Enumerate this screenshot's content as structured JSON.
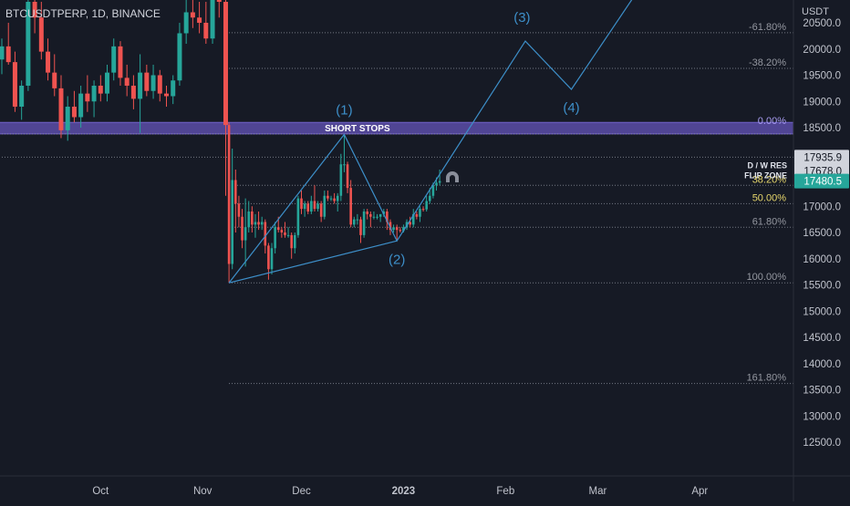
{
  "symbol_line": "BTCUSDTPERP, 1D, BINANCE",
  "colors": {
    "background": "#161a25",
    "bull": "#26a69a",
    "bear": "#ef5350",
    "wave": "#3d8fc9",
    "fib_line": "#8a8e9a",
    "fib_yellow": "#e6d66b",
    "zone": "#5b4ea8",
    "axis_text": "#c0c3cc",
    "last_price_bg": "#26a69a"
  },
  "chart_data": {
    "type": "candlestick",
    "title": "BTCUSDTPERP, 1D, BINANCE",
    "price_axis": {
      "unit": "USDT",
      "range": [
        12200,
        20600
      ],
      "ticks": [
        "12500.0",
        "13000.0",
        "13500.0",
        "14000.0",
        "14500.0",
        "15000.0",
        "15500.0",
        "16000.0",
        "16500.0",
        "17000.0",
        "17500.0",
        "18000.0",
        "18500.0",
        "19000.0",
        "19500.0",
        "20000.0",
        "20500.0"
      ]
    },
    "time_axis": {
      "labels": [
        {
          "text": "Oct",
          "date": "2022-10-01"
        },
        {
          "text": "Nov",
          "date": "2022-11-01"
        },
        {
          "text": "Dec",
          "date": "2022-12-01"
        },
        {
          "text": "2023",
          "date": "2023-01-01",
          "bold": true
        },
        {
          "text": "Feb",
          "date": "2023-02-01"
        },
        {
          "text": "Mar",
          "date": "2023-03-01"
        },
        {
          "text": "Apr",
          "date": "2023-04-01"
        }
      ]
    },
    "price_labels": [
      {
        "value": "17935.9",
        "price": 17935.9,
        "style": "light"
      },
      {
        "value": "17678.0",
        "price": 17678.0,
        "style": "light"
      },
      {
        "value": "17480.5",
        "price": 17480.5,
        "style": "last"
      }
    ],
    "horizontal_levels": [
      {
        "text": "D / W RES",
        "price": 17678.0
      },
      {
        "text": "FLIP ZONE",
        "price": 17480.5
      }
    ],
    "zone": {
      "text": "SHORT STOPS",
      "from": 18380,
      "to": 18600
    },
    "fib_levels": [
      {
        "label": "-61.80%",
        "price": 20310,
        "color": "gray"
      },
      {
        "label": "-38.20%",
        "price": 19630,
        "color": "gray"
      },
      {
        "label": "0.00%",
        "price": 18520,
        "color": "zone"
      },
      {
        "label": "38.20%",
        "price": 17400,
        "color": "yellow"
      },
      {
        "label": "50.00%",
        "price": 17050,
        "color": "yellow"
      },
      {
        "label": "61.80%",
        "price": 16600,
        "color": "gray"
      },
      {
        "label": "100.00%",
        "price": 15540,
        "color": "gray"
      },
      {
        "label": "161.80%",
        "price": 13620,
        "color": "gray"
      }
    ],
    "fib_span": {
      "start": "2022-11-09"
    },
    "extra_lines": [
      {
        "price": 17935.9,
        "start": "2022-09-01"
      },
      {
        "price": 18380,
        "start": "2022-09-01"
      }
    ],
    "waves": {
      "points": [
        {
          "date": "2022-11-09",
          "price": 15540
        },
        {
          "date": "2022-12-14",
          "price": 18370
        },
        {
          "date": "2022-12-30",
          "price": 16340
        },
        {
          "date": "2023-02-07",
          "price": 20150
        },
        {
          "date": "2023-02-21",
          "price": 19230
        },
        {
          "date": "2023-03-12",
          "price": 21000
        }
      ],
      "labels": [
        {
          "text": "(1)",
          "date": "2022-12-14",
          "price": 18750
        },
        {
          "text": "(2)",
          "date": "2022-12-30",
          "price": 15900
        },
        {
          "text": "(3)",
          "date": "2023-02-06",
          "price": 20520
        },
        {
          "text": "(4)",
          "date": "2023-02-21",
          "price": 18800
        }
      ]
    },
    "candles": [
      {
        "d": "2022-09-01",
        "o": 19800,
        "h": 20200,
        "l": 19520,
        "c": 20050
      },
      {
        "d": "2022-09-03",
        "o": 20050,
        "h": 20500,
        "l": 19700,
        "c": 19750
      },
      {
        "d": "2022-09-05",
        "o": 19750,
        "h": 19950,
        "l": 18800,
        "c": 18900
      },
      {
        "d": "2022-09-07",
        "o": 18900,
        "h": 19400,
        "l": 18650,
        "c": 19300
      },
      {
        "d": "2022-09-09",
        "o": 19300,
        "h": 21000,
        "l": 19200,
        "c": 20900
      },
      {
        "d": "2022-09-11",
        "o": 20900,
        "h": 21200,
        "l": 20300,
        "c": 20600
      },
      {
        "d": "2022-09-13",
        "o": 20600,
        "h": 20900,
        "l": 19800,
        "c": 19950
      },
      {
        "d": "2022-09-15",
        "o": 19950,
        "h": 20200,
        "l": 19400,
        "c": 19550
      },
      {
        "d": "2022-09-17",
        "o": 19550,
        "h": 19900,
        "l": 19100,
        "c": 19250
      },
      {
        "d": "2022-09-19",
        "o": 19250,
        "h": 19500,
        "l": 18300,
        "c": 18450
      },
      {
        "d": "2022-09-21",
        "o": 18450,
        "h": 19100,
        "l": 18250,
        "c": 18900
      },
      {
        "d": "2022-09-23",
        "o": 18900,
        "h": 19200,
        "l": 18600,
        "c": 18700
      },
      {
        "d": "2022-09-25",
        "o": 18700,
        "h": 19300,
        "l": 18500,
        "c": 19150
      },
      {
        "d": "2022-09-27",
        "o": 19150,
        "h": 19500,
        "l": 18800,
        "c": 19000
      },
      {
        "d": "2022-09-29",
        "o": 19000,
        "h": 19400,
        "l": 18700,
        "c": 19300
      },
      {
        "d": "2022-10-01",
        "o": 19300,
        "h": 19500,
        "l": 19000,
        "c": 19150
      },
      {
        "d": "2022-10-03",
        "o": 19150,
        "h": 19700,
        "l": 19000,
        "c": 19550
      },
      {
        "d": "2022-10-05",
        "o": 19550,
        "h": 20200,
        "l": 19400,
        "c": 20050
      },
      {
        "d": "2022-10-07",
        "o": 20050,
        "h": 20150,
        "l": 19300,
        "c": 19450
      },
      {
        "d": "2022-10-09",
        "o": 19450,
        "h": 19700,
        "l": 19100,
        "c": 19300
      },
      {
        "d": "2022-10-11",
        "o": 19300,
        "h": 19500,
        "l": 18850,
        "c": 19050
      },
      {
        "d": "2022-10-13",
        "o": 19050,
        "h": 19900,
        "l": 18400,
        "c": 19550
      },
      {
        "d": "2022-10-15",
        "o": 19550,
        "h": 19700,
        "l": 19100,
        "c": 19200
      },
      {
        "d": "2022-10-17",
        "o": 19200,
        "h": 19700,
        "l": 19050,
        "c": 19500
      },
      {
        "d": "2022-10-19",
        "o": 19500,
        "h": 19600,
        "l": 19000,
        "c": 19150
      },
      {
        "d": "2022-10-21",
        "o": 19150,
        "h": 19300,
        "l": 18900,
        "c": 19100
      },
      {
        "d": "2022-10-23",
        "o": 19100,
        "h": 19500,
        "l": 18950,
        "c": 19400
      },
      {
        "d": "2022-10-25",
        "o": 19400,
        "h": 20500,
        "l": 19300,
        "c": 20300
      },
      {
        "d": "2022-10-27",
        "o": 20300,
        "h": 21000,
        "l": 20100,
        "c": 20700
      },
      {
        "d": "2022-10-29",
        "o": 20700,
        "h": 21000,
        "l": 20400,
        "c": 20600
      },
      {
        "d": "2022-10-31",
        "o": 20600,
        "h": 20900,
        "l": 20300,
        "c": 20500
      },
      {
        "d": "2022-11-02",
        "o": 20500,
        "h": 20900,
        "l": 20100,
        "c": 20200
      },
      {
        "d": "2022-11-04",
        "o": 20200,
        "h": 21300,
        "l": 20100,
        "c": 21200
      },
      {
        "d": "2022-11-06",
        "o": 21200,
        "h": 21400,
        "l": 20600,
        "c": 20900
      },
      {
        "d": "2022-11-08",
        "o": 20900,
        "h": 21000,
        "l": 17200,
        "c": 18550
      },
      {
        "d": "2022-11-09",
        "o": 18550,
        "h": 18600,
        "l": 15540,
        "c": 15900
      },
      {
        "d": "2022-11-10",
        "o": 15900,
        "h": 18100,
        "l": 15800,
        "c": 17500
      },
      {
        "d": "2022-11-11",
        "o": 17500,
        "h": 17700,
        "l": 16500,
        "c": 17050
      },
      {
        "d": "2022-11-12",
        "o": 17050,
        "h": 17200,
        "l": 16600,
        "c": 16800
      },
      {
        "d": "2022-11-13",
        "o": 16800,
        "h": 16950,
        "l": 16200,
        "c": 16350
      },
      {
        "d": "2022-11-14",
        "o": 16350,
        "h": 17150,
        "l": 15850,
        "c": 16600
      },
      {
        "d": "2022-11-15",
        "o": 16600,
        "h": 17100,
        "l": 16500,
        "c": 16900
      },
      {
        "d": "2022-11-16",
        "o": 16900,
        "h": 17000,
        "l": 16500,
        "c": 16650
      },
      {
        "d": "2022-11-17",
        "o": 16650,
        "h": 16850,
        "l": 16400,
        "c": 16700
      },
      {
        "d": "2022-11-18",
        "o": 16700,
        "h": 16900,
        "l": 16550,
        "c": 16650
      },
      {
        "d": "2022-11-19",
        "o": 16650,
        "h": 16800,
        "l": 16550,
        "c": 16700
      },
      {
        "d": "2022-11-20",
        "o": 16700,
        "h": 16750,
        "l": 16100,
        "c": 16250
      },
      {
        "d": "2022-11-21",
        "o": 16250,
        "h": 16300,
        "l": 15600,
        "c": 15800
      },
      {
        "d": "2022-11-22",
        "o": 15800,
        "h": 16300,
        "l": 15700,
        "c": 16200
      },
      {
        "d": "2022-11-23",
        "o": 16200,
        "h": 16700,
        "l": 16100,
        "c": 16600
      },
      {
        "d": "2022-11-24",
        "o": 16600,
        "h": 16800,
        "l": 16500,
        "c": 16550
      },
      {
        "d": "2022-11-25",
        "o": 16550,
        "h": 16600,
        "l": 16400,
        "c": 16500
      },
      {
        "d": "2022-11-26",
        "o": 16500,
        "h": 16700,
        "l": 16400,
        "c": 16450
      },
      {
        "d": "2022-11-27",
        "o": 16450,
        "h": 16600,
        "l": 16400,
        "c": 16450
      },
      {
        "d": "2022-11-28",
        "o": 16450,
        "h": 16500,
        "l": 16000,
        "c": 16200
      },
      {
        "d": "2022-11-29",
        "o": 16200,
        "h": 16500,
        "l": 16100,
        "c": 16450
      },
      {
        "d": "2022-11-30",
        "o": 16450,
        "h": 17200,
        "l": 16400,
        "c": 17150
      },
      {
        "d": "2022-12-01",
        "o": 17150,
        "h": 17300,
        "l": 16850,
        "c": 16950
      },
      {
        "d": "2022-12-02",
        "o": 16950,
        "h": 17100,
        "l": 16800,
        "c": 17050
      },
      {
        "d": "2022-12-03",
        "o": 17050,
        "h": 17100,
        "l": 16850,
        "c": 16900
      },
      {
        "d": "2022-12-04",
        "o": 16900,
        "h": 17200,
        "l": 16850,
        "c": 17100
      },
      {
        "d": "2022-12-05",
        "o": 17100,
        "h": 17400,
        "l": 16900,
        "c": 16950
      },
      {
        "d": "2022-12-06",
        "o": 16950,
        "h": 17100,
        "l": 16900,
        "c": 17050
      },
      {
        "d": "2022-12-07",
        "o": 17050,
        "h": 17100,
        "l": 16700,
        "c": 16800
      },
      {
        "d": "2022-12-08",
        "o": 16800,
        "h": 17300,
        "l": 16750,
        "c": 17200
      },
      {
        "d": "2022-12-09",
        "o": 17200,
        "h": 17300,
        "l": 17100,
        "c": 17150
      },
      {
        "d": "2022-12-10",
        "o": 17150,
        "h": 17200,
        "l": 17100,
        "c": 17150
      },
      {
        "d": "2022-12-11",
        "o": 17150,
        "h": 17250,
        "l": 17050,
        "c": 17100
      },
      {
        "d": "2022-12-12",
        "o": 17100,
        "h": 17250,
        "l": 16900,
        "c": 17200
      },
      {
        "d": "2022-12-13",
        "o": 17200,
        "h": 18000,
        "l": 17100,
        "c": 17800
      },
      {
        "d": "2022-12-14",
        "o": 17800,
        "h": 18370,
        "l": 17650,
        "c": 17800
      },
      {
        "d": "2022-12-15",
        "o": 17800,
        "h": 17850,
        "l": 17250,
        "c": 17350
      },
      {
        "d": "2022-12-16",
        "o": 17350,
        "h": 17500,
        "l": 16600,
        "c": 16650
      },
      {
        "d": "2022-12-17",
        "o": 16650,
        "h": 16800,
        "l": 16600,
        "c": 16750
      },
      {
        "d": "2022-12-18",
        "o": 16750,
        "h": 16850,
        "l": 16650,
        "c": 16750
      },
      {
        "d": "2022-12-19",
        "o": 16750,
        "h": 16800,
        "l": 16300,
        "c": 16450
      },
      {
        "d": "2022-12-20",
        "o": 16450,
        "h": 16950,
        "l": 16400,
        "c": 16900
      },
      {
        "d": "2022-12-21",
        "o": 16900,
        "h": 16950,
        "l": 16750,
        "c": 16850
      },
      {
        "d": "2022-12-22",
        "o": 16850,
        "h": 16900,
        "l": 16600,
        "c": 16800
      },
      {
        "d": "2022-12-23",
        "o": 16800,
        "h": 16900,
        "l": 16750,
        "c": 16800
      },
      {
        "d": "2022-12-24",
        "o": 16800,
        "h": 16850,
        "l": 16750,
        "c": 16800
      },
      {
        "d": "2022-12-25",
        "o": 16800,
        "h": 16850,
        "l": 16700,
        "c": 16850
      },
      {
        "d": "2022-12-26",
        "o": 16850,
        "h": 16950,
        "l": 16800,
        "c": 16900
      },
      {
        "d": "2022-12-27",
        "o": 16900,
        "h": 16950,
        "l": 16550,
        "c": 16700
      },
      {
        "d": "2022-12-28",
        "o": 16700,
        "h": 16750,
        "l": 16450,
        "c": 16550
      },
      {
        "d": "2022-12-29",
        "o": 16550,
        "h": 16650,
        "l": 16500,
        "c": 16600
      },
      {
        "d": "2022-12-30",
        "o": 16600,
        "h": 16650,
        "l": 16340,
        "c": 16550
      },
      {
        "d": "2022-12-31",
        "o": 16550,
        "h": 16600,
        "l": 16500,
        "c": 16530
      },
      {
        "d": "2023-01-01",
        "o": 16530,
        "h": 16650,
        "l": 16500,
        "c": 16600
      },
      {
        "d": "2023-01-02",
        "o": 16600,
        "h": 16750,
        "l": 16550,
        "c": 16700
      },
      {
        "d": "2023-01-03",
        "o": 16700,
        "h": 16800,
        "l": 16600,
        "c": 16650
      },
      {
        "d": "2023-01-04",
        "o": 16650,
        "h": 16950,
        "l": 16600,
        "c": 16850
      },
      {
        "d": "2023-01-05",
        "o": 16850,
        "h": 16900,
        "l": 16750,
        "c": 16800
      },
      {
        "d": "2023-01-06",
        "o": 16800,
        "h": 17000,
        "l": 16700,
        "c": 16950
      },
      {
        "d": "2023-01-07",
        "o": 16950,
        "h": 17000,
        "l": 16900,
        "c": 16940
      },
      {
        "d": "2023-01-08",
        "o": 16940,
        "h": 17200,
        "l": 16900,
        "c": 17100
      },
      {
        "d": "2023-01-09",
        "o": 17100,
        "h": 17350,
        "l": 17050,
        "c": 17200
      },
      {
        "d": "2023-01-10",
        "o": 17200,
        "h": 17450,
        "l": 17150,
        "c": 17400
      },
      {
        "d": "2023-01-11",
        "o": 17400,
        "h": 17550,
        "l": 17300,
        "c": 17450
      },
      {
        "d": "2023-01-12",
        "o": 17450,
        "h": 17700,
        "l": 17400,
        "c": 17480.5
      }
    ]
  }
}
